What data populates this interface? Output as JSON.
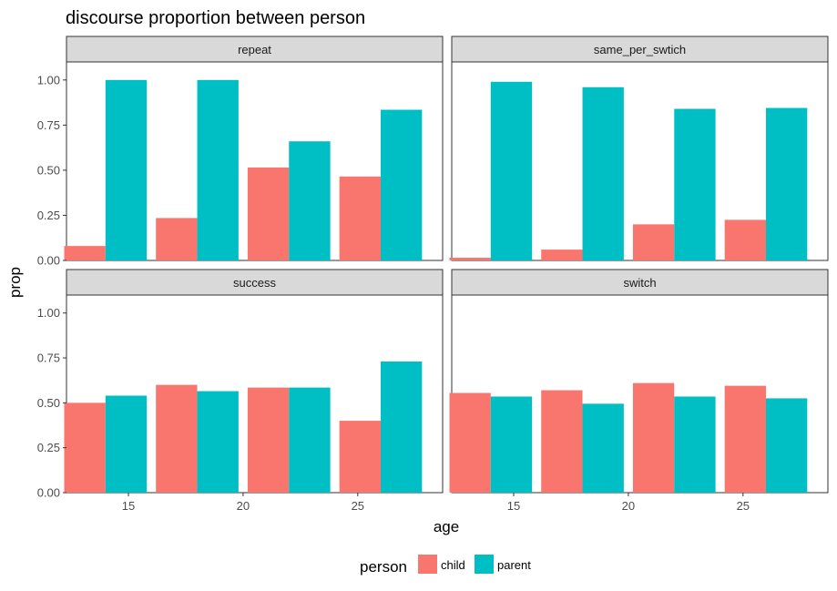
{
  "chart_data": {
    "type": "bar",
    "title": "discourse proportion between person",
    "xlabel": "age",
    "ylabel": "prop",
    "ylim": [
      0,
      1.1
    ],
    "yticks": [
      "0.00",
      "0.25",
      "0.50",
      "0.75",
      "1.00"
    ],
    "ytick_values": [
      0,
      0.25,
      0.5,
      0.75,
      1.0
    ],
    "xtick_labels": [
      "15",
      "20",
      "25"
    ],
    "xtick_values": [
      15,
      20,
      25
    ],
    "xlim": [
      12.3,
      28.7
    ],
    "legend": {
      "title": "person",
      "placement": "bottom",
      "entries": [
        {
          "name": "child",
          "color": "#F8766D"
        },
        {
          "name": "parent",
          "color": "#00BFC4"
        }
      ]
    },
    "grid": false,
    "ages": [
      14,
      18,
      22,
      26
    ],
    "panels": [
      {
        "name": "repeat",
        "child": [
          0.08,
          0.235,
          0.515,
          0.465
        ],
        "parent": [
          1.0,
          1.0,
          0.66,
          0.835
        ]
      },
      {
        "name": "same_per_swtich",
        "child": [
          0.015,
          0.06,
          0.2,
          0.225
        ],
        "parent": [
          0.99,
          0.96,
          0.84,
          0.845
        ]
      },
      {
        "name": "success",
        "child": [
          0.5,
          0.6,
          0.585,
          0.4
        ],
        "parent": [
          0.54,
          0.565,
          0.585,
          0.73
        ]
      },
      {
        "name": "switch",
        "child": [
          0.555,
          0.57,
          0.61,
          0.595
        ],
        "parent": [
          0.535,
          0.495,
          0.535,
          0.525
        ]
      }
    ]
  }
}
